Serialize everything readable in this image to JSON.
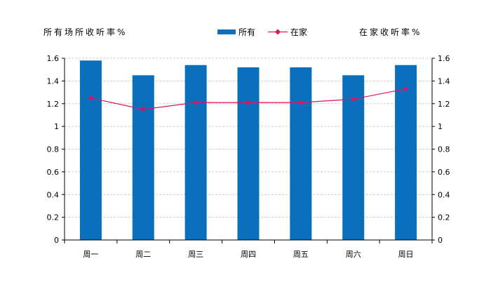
{
  "chart_data": {
    "type": "bar",
    "categories": [
      "周一",
      "周二",
      "周三",
      "周四",
      "周五",
      "周六",
      "周日"
    ],
    "series": [
      {
        "name": "所有",
        "kind": "bar",
        "color": "#0a70be",
        "values": [
          1.58,
          1.45,
          1.54,
          1.52,
          1.52,
          1.45,
          1.54
        ]
      },
      {
        "name": "在家",
        "kind": "line",
        "color": "#e0105a",
        "values": [
          1.25,
          1.15,
          1.21,
          1.21,
          1.21,
          1.24,
          1.33
        ]
      }
    ],
    "ylabel_left": "所有场所收听率%",
    "ylabel_right": "在家收听率%",
    "ylim": [
      0,
      1.6
    ],
    "yticks": [
      "0",
      "0.2",
      "0.4",
      "0.6",
      "0.8",
      "1",
      "1.2",
      "1.4",
      "1.6"
    ],
    "grid": true,
    "legend_position": "top-center"
  }
}
